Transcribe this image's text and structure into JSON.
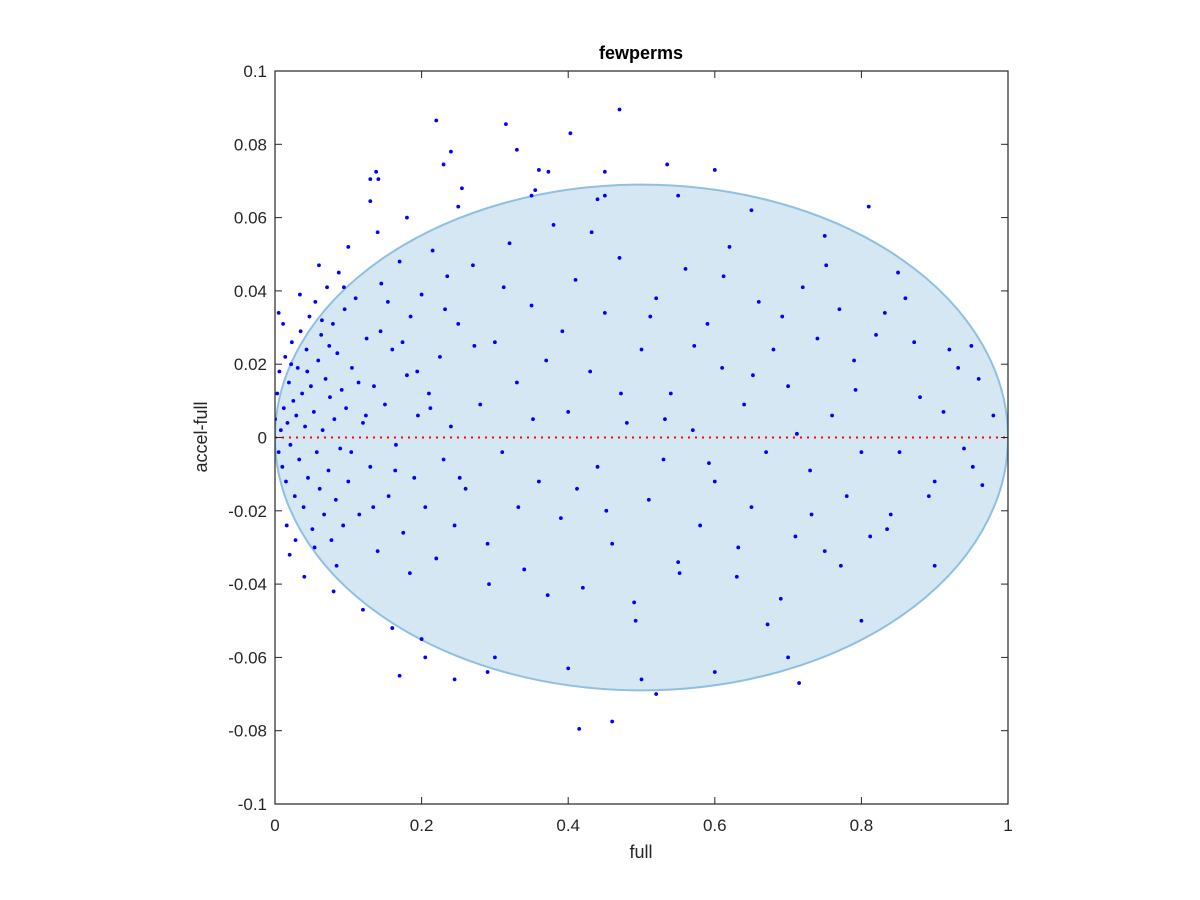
{
  "chart_data": {
    "type": "scatter",
    "title": "fewperms",
    "xlabel": "full",
    "ylabel": "accel-full",
    "xlim": [
      0,
      1
    ],
    "ylim": [
      -0.1,
      0.1
    ],
    "xticks": [
      0,
      0.2,
      0.4,
      0.6,
      0.8,
      1
    ],
    "xtick_labels": [
      "0",
      "0.2",
      "0.4",
      "0.6",
      "0.8",
      "1"
    ],
    "yticks": [
      -0.1,
      -0.08,
      -0.06,
      -0.04,
      -0.02,
      0,
      0.02,
      0.04,
      0.06,
      0.08,
      0.1
    ],
    "ytick_labels": [
      "-0.1",
      "-0.08",
      "-0.06",
      "-0.04",
      "-0.02",
      "0",
      "0.02",
      "0.04",
      "0.06",
      "0.08",
      "0.1"
    ],
    "grid": false,
    "box": true,
    "colors": {
      "points": "#0000ff",
      "ellipse_fill": "#d6e7f4",
      "ellipse_edge": "#8fc0e0",
      "zero_line": "#ff0000",
      "axes": "#262626"
    },
    "reference_line": {
      "y": 0,
      "style": "dotted"
    },
    "ellipse": {
      "center": [
        0.5,
        0.0
      ],
      "radius_x": 0.5,
      "radius_y": 0.069
    },
    "series": [
      {
        "marker": "dot",
        "points": [
          [
            0.47,
            0.0895
          ],
          [
            0.22,
            0.0865
          ],
          [
            0.315,
            0.0855
          ],
          [
            0.403,
            0.083
          ],
          [
            0.24,
            0.078
          ],
          [
            0.23,
            0.0745
          ],
          [
            0.33,
            0.0785
          ],
          [
            0.535,
            0.0745
          ],
          [
            0.36,
            0.073
          ],
          [
            0.6,
            0.073
          ],
          [
            0.138,
            0.0725
          ],
          [
            0.13,
            0.0705
          ],
          [
            0.141,
            0.0705
          ],
          [
            0.373,
            0.0725
          ],
          [
            0.45,
            0.0725
          ],
          [
            0.81,
            0.063
          ],
          [
            0.13,
            0.0645
          ],
          [
            0.44,
            0.065
          ],
          [
            0.255,
            0.068
          ],
          [
            0.355,
            0.0675
          ],
          [
            0.0,
            0.005
          ],
          [
            0.003,
            0.012
          ],
          [
            0.005,
            -0.004
          ],
          [
            0.006,
            0.018
          ],
          [
            0.008,
            0.002
          ],
          [
            0.01,
            -0.008
          ],
          [
            0.012,
            0.008
          ],
          [
            0.014,
            0.022
          ],
          [
            0.015,
            -0.012
          ],
          [
            0.017,
            0.004
          ],
          [
            0.019,
            0.015
          ],
          [
            0.021,
            -0.002
          ],
          [
            0.023,
            0.026
          ],
          [
            0.025,
            0.01
          ],
          [
            0.027,
            -0.016
          ],
          [
            0.029,
            0.006
          ],
          [
            0.031,
            0.019
          ],
          [
            0.033,
            -0.006
          ],
          [
            0.035,
            0.029
          ],
          [
            0.037,
            0.012
          ],
          [
            0.039,
            -0.019
          ],
          [
            0.041,
            0.003
          ],
          [
            0.043,
            0.024
          ],
          [
            0.045,
            -0.011
          ],
          [
            0.047,
            0.033
          ],
          [
            0.049,
            0.014
          ],
          [
            0.051,
            -0.025
          ],
          [
            0.053,
            0.007
          ],
          [
            0.055,
            0.037
          ],
          [
            0.057,
            -0.004
          ],
          [
            0.059,
            0.021
          ],
          [
            0.061,
            -0.014
          ],
          [
            0.063,
            0.028
          ],
          [
            0.065,
            0.002
          ],
          [
            0.067,
            -0.021
          ],
          [
            0.069,
            0.016
          ],
          [
            0.071,
            0.041
          ],
          [
            0.073,
            -0.009
          ],
          [
            0.075,
            0.011
          ],
          [
            0.077,
            -0.028
          ],
          [
            0.079,
            0.031
          ],
          [
            0.081,
            0.005
          ],
          [
            0.083,
            -0.017
          ],
          [
            0.085,
            0.023
          ],
          [
            0.087,
            0.045
          ],
          [
            0.089,
            -0.003
          ],
          [
            0.091,
            0.013
          ],
          [
            0.093,
            -0.024
          ],
          [
            0.095,
            0.035
          ],
          [
            0.097,
            0.008
          ],
          [
            0.1,
            -0.012
          ],
          [
            0.105,
            0.019
          ],
          [
            0.11,
            0.038
          ],
          [
            0.115,
            -0.021
          ],
          [
            0.12,
            0.004
          ],
          [
            0.125,
            0.027
          ],
          [
            0.13,
            -0.008
          ],
          [
            0.135,
            0.014
          ],
          [
            0.14,
            -0.031
          ],
          [
            0.145,
            0.042
          ],
          [
            0.15,
            0.009
          ],
          [
            0.155,
            -0.016
          ],
          [
            0.16,
            0.024
          ],
          [
            0.165,
            -0.002
          ],
          [
            0.17,
            0.048
          ],
          [
            0.175,
            -0.026
          ],
          [
            0.18,
            0.017
          ],
          [
            0.185,
            0.033
          ],
          [
            0.19,
            -0.011
          ],
          [
            0.195,
            0.006
          ],
          [
            0.2,
            0.039
          ],
          [
            0.205,
            -0.019
          ],
          [
            0.21,
            0.012
          ],
          [
            0.215,
            0.051
          ],
          [
            0.22,
            -0.033
          ],
          [
            0.225,
            0.022
          ],
          [
            0.23,
            -0.006
          ],
          [
            0.235,
            0.044
          ],
          [
            0.24,
            0.003
          ],
          [
            0.245,
            -0.024
          ],
          [
            0.25,
            0.031
          ],
          [
            0.26,
            -0.014
          ],
          [
            0.27,
            0.047
          ],
          [
            0.28,
            0.009
          ],
          [
            0.29,
            -0.029
          ],
          [
            0.3,
            0.026
          ],
          [
            0.31,
            -0.004
          ],
          [
            0.32,
            0.053
          ],
          [
            0.33,
            0.015
          ],
          [
            0.34,
            -0.036
          ],
          [
            0.35,
            0.036
          ],
          [
            0.36,
            -0.012
          ],
          [
            0.37,
            0.021
          ],
          [
            0.38,
            0.058
          ],
          [
            0.39,
            -0.022
          ],
          [
            0.4,
            0.007
          ],
          [
            0.41,
            0.043
          ],
          [
            0.42,
            -0.041
          ],
          [
            0.43,
            0.018
          ],
          [
            0.44,
            -0.008
          ],
          [
            0.45,
            0.034
          ],
          [
            0.46,
            -0.029
          ],
          [
            0.47,
            0.049
          ],
          [
            0.48,
            0.004
          ],
          [
            0.49,
            -0.045
          ],
          [
            0.5,
            0.024
          ],
          [
            0.51,
            -0.017
          ],
          [
            0.52,
            0.038
          ],
          [
            0.53,
            -0.006
          ],
          [
            0.54,
            0.012
          ],
          [
            0.55,
            -0.034
          ],
          [
            0.56,
            0.046
          ],
          [
            0.57,
            0.002
          ],
          [
            0.58,
            -0.024
          ],
          [
            0.59,
            0.031
          ],
          [
            0.6,
            -0.012
          ],
          [
            0.61,
            0.019
          ],
          [
            0.62,
            0.052
          ],
          [
            0.63,
            -0.038
          ],
          [
            0.64,
            0.009
          ],
          [
            0.65,
            -0.019
          ],
          [
            0.66,
            0.037
          ],
          [
            0.67,
            -0.004
          ],
          [
            0.68,
            0.024
          ],
          [
            0.69,
            -0.044
          ],
          [
            0.7,
            0.014
          ],
          [
            0.71,
            -0.027
          ],
          [
            0.72,
            0.041
          ],
          [
            0.73,
            -0.009
          ],
          [
            0.74,
            0.027
          ],
          [
            0.75,
            -0.031
          ],
          [
            0.76,
            0.006
          ],
          [
            0.77,
            0.035
          ],
          [
            0.78,
            -0.016
          ],
          [
            0.79,
            0.021
          ],
          [
            0.8,
            -0.004
          ],
          [
            0.82,
            0.028
          ],
          [
            0.84,
            -0.021
          ],
          [
            0.86,
            0.038
          ],
          [
            0.88,
            0.011
          ],
          [
            0.9,
            -0.012
          ],
          [
            0.92,
            0.024
          ],
          [
            0.94,
            -0.003
          ],
          [
            0.96,
            0.016
          ],
          [
            0.98,
            0.006
          ],
          [
            0.02,
            -0.032
          ],
          [
            0.04,
            -0.038
          ],
          [
            0.06,
            0.047
          ],
          [
            0.08,
            -0.042
          ],
          [
            0.1,
            0.052
          ],
          [
            0.12,
            -0.047
          ],
          [
            0.14,
            0.056
          ],
          [
            0.16,
            -0.052
          ],
          [
            0.18,
            0.06
          ],
          [
            0.2,
            -0.055
          ],
          [
            0.25,
            0.063
          ],
          [
            0.3,
            -0.06
          ],
          [
            0.35,
            0.066
          ],
          [
            0.4,
            -0.063
          ],
          [
            0.45,
            0.066
          ],
          [
            0.5,
            -0.066
          ],
          [
            0.55,
            0.066
          ],
          [
            0.6,
            -0.064
          ],
          [
            0.65,
            0.062
          ],
          [
            0.7,
            -0.06
          ],
          [
            0.75,
            0.055
          ],
          [
            0.8,
            -0.05
          ],
          [
            0.85,
            0.045
          ],
          [
            0.9,
            -0.035
          ],
          [
            0.95,
            0.025
          ],
          [
            0.17,
            -0.065
          ],
          [
            0.245,
            -0.066
          ],
          [
            0.29,
            -0.064
          ],
          [
            0.205,
            -0.06
          ],
          [
            0.415,
            -0.0795
          ],
          [
            0.46,
            -0.0775
          ],
          [
            0.52,
            -0.07
          ],
          [
            0.715,
            -0.067
          ],
          [
            0.835,
            -0.025
          ],
          [
            0.965,
            -0.013
          ],
          [
            0.005,
            0.034
          ],
          [
            0.011,
            0.031
          ],
          [
            0.016,
            -0.024
          ],
          [
            0.022,
            0.02
          ],
          [
            0.028,
            -0.028
          ],
          [
            0.034,
            0.039
          ],
          [
            0.044,
            0.018
          ],
          [
            0.054,
            -0.03
          ],
          [
            0.064,
            0.032
          ],
          [
            0.074,
            0.025
          ],
          [
            0.084,
            -0.035
          ],
          [
            0.094,
            0.041
          ],
          [
            0.104,
            -0.004
          ],
          [
            0.114,
            0.015
          ],
          [
            0.124,
            0.006
          ],
          [
            0.134,
            -0.019
          ],
          [
            0.144,
            0.029
          ],
          [
            0.154,
            0.037
          ],
          [
            0.164,
            -0.009
          ],
          [
            0.174,
            0.026
          ],
          [
            0.184,
            -0.037
          ],
          [
            0.194,
            0.018
          ],
          [
            0.212,
            0.008
          ],
          [
            0.232,
            0.035
          ],
          [
            0.252,
            -0.011
          ],
          [
            0.272,
            0.025
          ],
          [
            0.292,
            -0.04
          ],
          [
            0.312,
            0.041
          ],
          [
            0.332,
            -0.019
          ],
          [
            0.352,
            0.005
          ],
          [
            0.372,
            -0.043
          ],
          [
            0.392,
            0.029
          ],
          [
            0.412,
            -0.014
          ],
          [
            0.432,
            0.056
          ],
          [
            0.452,
            -0.02
          ],
          [
            0.472,
            0.012
          ],
          [
            0.492,
            -0.05
          ],
          [
            0.512,
            0.033
          ],
          [
            0.532,
            0.005
          ],
          [
            0.552,
            -0.037
          ],
          [
            0.572,
            0.025
          ],
          [
            0.592,
            -0.007
          ],
          [
            0.612,
            0.044
          ],
          [
            0.632,
            -0.03
          ],
          [
            0.652,
            0.017
          ],
          [
            0.672,
            -0.051
          ],
          [
            0.692,
            0.033
          ],
          [
            0.712,
            0.001
          ],
          [
            0.732,
            -0.021
          ],
          [
            0.752,
            0.047
          ],
          [
            0.772,
            -0.035
          ],
          [
            0.792,
            0.013
          ],
          [
            0.812,
            -0.027
          ],
          [
            0.832,
            0.034
          ],
          [
            0.852,
            -0.004
          ],
          [
            0.872,
            0.026
          ],
          [
            0.892,
            -0.016
          ],
          [
            0.912,
            0.007
          ],
          [
            0.932,
            0.019
          ],
          [
            0.952,
            -0.008
          ]
        ]
      }
    ]
  }
}
